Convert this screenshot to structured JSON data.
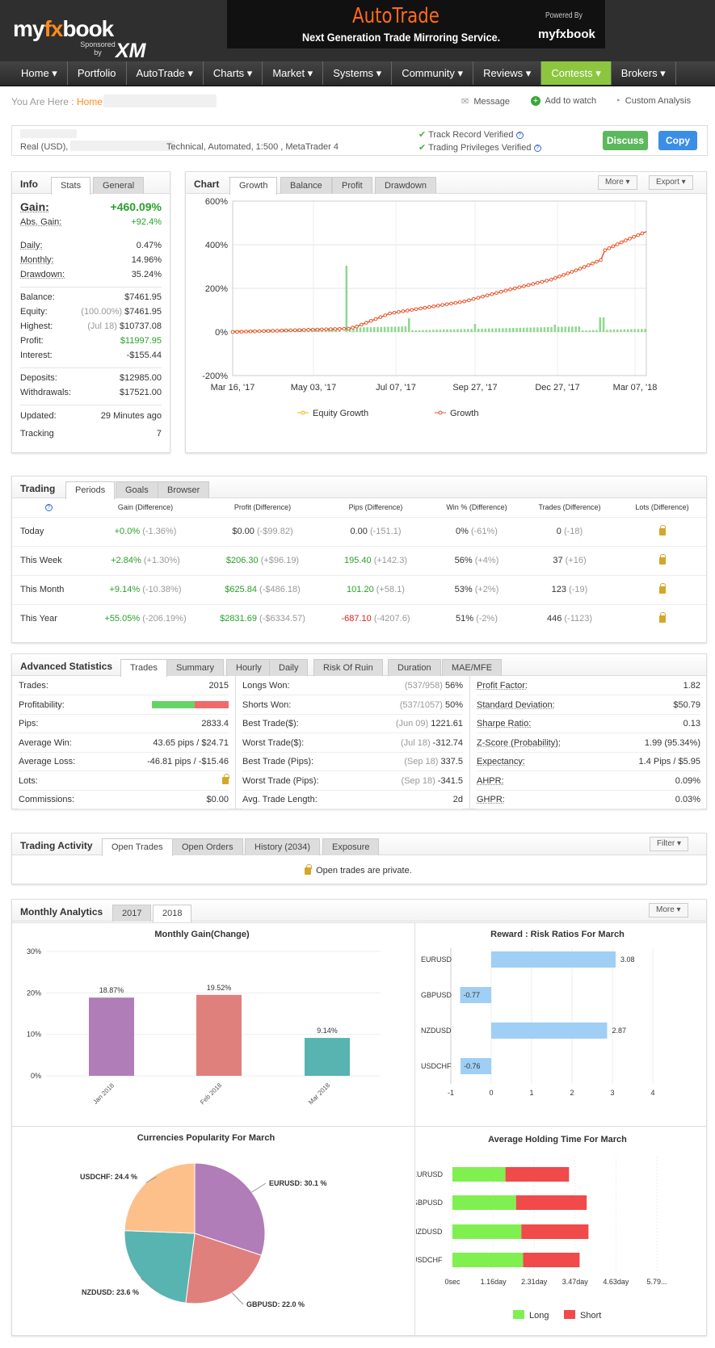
{
  "brand": {
    "logo_a": "my",
    "logo_fx": "fx",
    "logo_b": "book",
    "sponsored": "Sponsored by",
    "sponsor": "XM"
  },
  "banner": {
    "title": "AutoTrade",
    "subtitle": "Next Generation Trade Mirroring Service.",
    "powered": "Powered By",
    "powered_logo": "myfxbook"
  },
  "nav": [
    "Home ▾",
    "Portfolio",
    "AutoTrade ▾",
    "Charts ▾",
    "Market ▾",
    "Systems ▾",
    "Community ▾",
    "Reviews ▾",
    "Contests ▾",
    "Brokers ▾"
  ],
  "breadcrumb": {
    "prefix": "You Are Here :",
    "home": "Home"
  },
  "actions": {
    "message": "Message",
    "watch": "Add to watch",
    "custom": "Custom Analysis"
  },
  "account": {
    "type": "Real (USD),",
    "details": "Technical, Automated, 1:500 , MetaTrader 4",
    "track": "Track Record Verified",
    "privileges": "Trading Privileges Verified",
    "discuss": "Discuss",
    "copy": "Copy"
  },
  "info": {
    "title": "Info",
    "tabs": [
      "Stats",
      "General"
    ],
    "gain_label": "Gain:",
    "gain": "+460.09%",
    "abs_label": "Abs. Gain:",
    "abs": "+92.4%",
    "daily_label": "Daily:",
    "daily": "0.47%",
    "monthly_label": "Monthly:",
    "monthly": "14.96%",
    "drawdown_label": "Drawdown:",
    "drawdown": "35.24%",
    "balance_label": "Balance:",
    "balance": "$7461.95",
    "equity_label": "Equity:",
    "equity_pct": "(100.00%)",
    "equity": "$7461.95",
    "highest_label": "Highest:",
    "highest_date": "(Jul 18)",
    "highest": "$10737.08",
    "profit_label": "Profit:",
    "profit": "$11997.95",
    "interest_label": "Interest:",
    "interest": "-$155.44",
    "deposits_label": "Deposits:",
    "deposits": "$12985.00",
    "withdrawals_label": "Withdrawals:",
    "withdrawals": "$17521.00",
    "updated_label": "Updated:",
    "updated": "29 Minutes ago",
    "tracking_label": "Tracking",
    "tracking": "7"
  },
  "chart": {
    "title": "Chart",
    "tabs": [
      "Growth",
      "Balance",
      "Profit",
      "Drawdown"
    ],
    "more": "More ▾",
    "export": "Export ▾"
  },
  "chart_data": [
    {
      "type": "line",
      "title": "Growth",
      "y_ticks": [
        "600%",
        "400%",
        "200%",
        "0%",
        "-200%"
      ],
      "ylim": [
        -200,
        600
      ],
      "x_ticks": [
        "Mar 16, '17",
        "May 03, '17",
        "Jul 07, '17",
        "Sep 27, '17",
        "Dec 27, '17",
        "Mar 07, '18"
      ],
      "legend": [
        "Equity Growth",
        "Growth"
      ],
      "series": [
        {
          "name": "Growth",
          "x": [
            0,
            0.28,
            0.3,
            0.38,
            0.56,
            0.66,
            0.77,
            0.84,
            0.89,
            0.9,
            0.95,
            1.0
          ],
          "values": [
            0,
            15,
            25,
            85,
            140,
            190,
            240,
            290,
            330,
            375,
            420,
            460
          ]
        }
      ],
      "bars_note": "daily trade activity bars, spike near May 2017"
    },
    {
      "type": "bar",
      "title": "Monthly Gain(Change)",
      "categories": [
        "Jan 2018",
        "Feb 2018",
        "Mar 2018"
      ],
      "values": [
        18.87,
        19.52,
        9.14
      ],
      "labels": [
        "18.87%",
        "19.52%",
        "9.14%"
      ],
      "y_ticks": [
        "30%",
        "20%",
        "10%",
        "0%"
      ],
      "ylim": [
        0,
        30
      ],
      "colors": [
        "#b07db8",
        "#e0807c",
        "#57b4b0"
      ]
    },
    {
      "type": "bar",
      "title": "Reward : Risk Ratios For March",
      "categories": [
        "EURUSD",
        "GBPUSD",
        "NZDUSD",
        "USDCHF"
      ],
      "values": [
        3.08,
        -0.77,
        2.87,
        -0.76
      ],
      "labels": [
        "3.08",
        "-0.77",
        "2.87",
        "-0.76"
      ],
      "x_ticks": [
        "-1",
        "0",
        "1",
        "2",
        "3",
        "4"
      ],
      "xlim": [
        -1,
        4
      ]
    },
    {
      "type": "pie",
      "title": "Currencies Popularity For March",
      "categories": [
        "EURUSD",
        "GBPUSD",
        "NZDUSD",
        "USDCHF"
      ],
      "values": [
        30.1,
        22.0,
        23.6,
        24.4
      ],
      "labels": [
        "EURUSD: 30.1 %",
        "GBPUSD: 22.0 %",
        "NZDUSD: 23.6 %",
        "USDCHF: 24.4 %"
      ],
      "colors": [
        "#b07db8",
        "#e0807c",
        "#57b4b0",
        "#fdc08a"
      ]
    },
    {
      "type": "bar",
      "title": "Average Holding Time For March",
      "categories": [
        "EURUSD",
        "GBPUSD",
        "NZDUSD",
        "USDCHF"
      ],
      "series": [
        {
          "name": "Long",
          "values": [
            1.5,
            1.8,
            1.95,
            2.0
          ]
        },
        {
          "name": "Short",
          "values": [
            1.8,
            2.0,
            1.9,
            1.6
          ]
        }
      ],
      "x_ticks": [
        "0sec",
        "1.16day",
        "2.31day",
        "3.47day",
        "4.63day",
        "5.79..."
      ],
      "legend": [
        "Long",
        "Short"
      ]
    }
  ],
  "trading": {
    "title": "Trading",
    "tabs": [
      "Periods",
      "Goals",
      "Browser"
    ],
    "headers": [
      "Gain (Difference)",
      "Profit (Difference)",
      "Pips (Difference)",
      "Win % (Difference)",
      "Trades (Difference)",
      "Lots (Difference)"
    ],
    "rows": [
      {
        "name": "Today",
        "gain": "+0.0%",
        "gain_d": "(-1.36%)",
        "profit": "$0.00",
        "profit_d": "(-$99.82)",
        "pips": "0.00",
        "pips_d": "(-151.1)",
        "win": "0%",
        "win_d": "(-61%)",
        "trades": "0",
        "trades_d": "(-18)"
      },
      {
        "name": "This Week",
        "gain": "+2.84%",
        "gain_d": "(+1.30%)",
        "profit": "$206.30",
        "profit_d": "(+$96.19)",
        "pips": "195.40",
        "pips_d": "(+142.3)",
        "win": "56%",
        "win_d": "(+4%)",
        "trades": "37",
        "trades_d": "(+16)"
      },
      {
        "name": "This Month",
        "gain": "+9.14%",
        "gain_d": "(-10.38%)",
        "profit": "$625.84",
        "profit_d": "(-$486.18)",
        "pips": "101.20",
        "pips_d": "(+58.1)",
        "win": "53%",
        "win_d": "(+2%)",
        "trades": "123",
        "trades_d": "(-19)"
      },
      {
        "name": "This Year",
        "gain": "+55.05%",
        "gain_d": "(-206.19%)",
        "profit": "$2831.69",
        "profit_d": "(-$6334.57)",
        "pips": "-687.10",
        "pips_d": "(-4207.6)",
        "win": "51%",
        "win_d": "(-2%)",
        "trades": "446",
        "trades_d": "(-1123)"
      }
    ]
  },
  "advanced": {
    "title": "Advanced Statistics",
    "tabs": [
      "Trades",
      "Summary",
      "Hourly",
      "Daily",
      "Risk Of Ruin",
      "Duration",
      "MAE/MFE"
    ],
    "col1": [
      {
        "l": "Trades:",
        "r": "2015"
      },
      {
        "l": "Profitability:",
        "r": ""
      },
      {
        "l": "Pips:",
        "r": "2833.4"
      },
      {
        "l": "Average Win:",
        "r": "43.65 pips / $24.71"
      },
      {
        "l": "Average Loss:",
        "r": "-46.81 pips / -$15.46"
      },
      {
        "l": "Lots:",
        "r": ""
      },
      {
        "l": "Commissions:",
        "r": "$0.00"
      }
    ],
    "col2": [
      {
        "l": "Longs Won:",
        "g": "(537/958)",
        "r": "56%"
      },
      {
        "l": "Shorts Won:",
        "g": "(537/1057)",
        "r": "50%"
      },
      {
        "l": "Best Trade($):",
        "g": "(Jun 09)",
        "r": "1221.61"
      },
      {
        "l": "Worst Trade($):",
        "g": "(Jul 18)",
        "r": "-312.74"
      },
      {
        "l": "Best Trade (Pips):",
        "g": "(Sep 18)",
        "r": "337.5"
      },
      {
        "l": "Worst Trade (Pips):",
        "g": "(Sep 18)",
        "r": "-341.5"
      },
      {
        "l": "Avg. Trade Length:",
        "g": "",
        "r": "2d"
      }
    ],
    "col3": [
      {
        "l": "Profit Factor:",
        "r": "1.82"
      },
      {
        "l": "Standard Deviation:",
        "r": "$50.79"
      },
      {
        "l": "Sharpe Ratio:",
        "r": "0.13"
      },
      {
        "l": "Z-Score (Probability):",
        "r": "1.99 (95.34%)"
      },
      {
        "l": "Expectancy:",
        "r": "1.4 Pips / $5.95"
      },
      {
        "l": "AHPR:",
        "r": "0.09%"
      },
      {
        "l": "GHPR:",
        "r": "0.03%"
      }
    ],
    "profitability": 0.56
  },
  "activity": {
    "title": "Trading Activity",
    "tabs": [
      "Open Trades",
      "Open Orders",
      "History (2034)",
      "Exposure"
    ],
    "filter": "Filter ▾",
    "private": "Open trades are private."
  },
  "monthly": {
    "title": "Monthly Analytics",
    "tabs": [
      "2017",
      "2018"
    ],
    "more": "More ▾"
  }
}
